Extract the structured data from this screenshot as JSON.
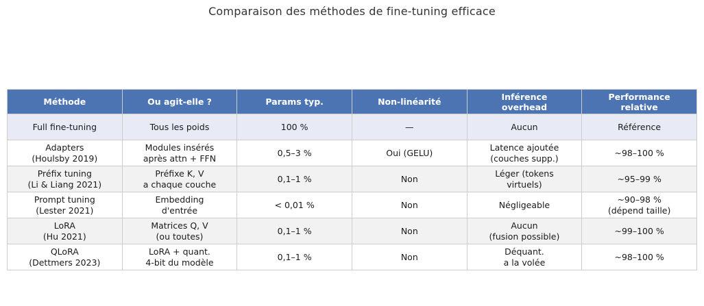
{
  "chart_data": {
    "type": "table",
    "title": "Comparaison des méthodes de fine-tuning efficace",
    "columns": [
      "Méthode",
      "Ou agit-elle ?",
      "Params typ.",
      "Non-linéarité",
      "Inférence\noverhead",
      "Performance\nrelative"
    ],
    "rows": [
      [
        "Full fine-tuning",
        "Tous les poids",
        "100 %",
        "—",
        "Aucun",
        "Référence"
      ],
      [
        "Adapters\n(Houlsby 2019)",
        "Modules insérés\naprès attn + FFN",
        "0,5–3 %",
        "Oui (GELU)",
        "Latence ajoutée\n(couches supp.)",
        "~98–100 %"
      ],
      [
        "Préfix tuning\n(Li & Liang 2021)",
        "Préfixe K, V\na chaque couche",
        "0,1–1 %",
        "Non",
        "Léger (tokens\nvirtuels)",
        "~95–99 %"
      ],
      [
        "Prompt tuning\n(Lester 2021)",
        "Embedding\nd'entrée",
        "< 0,01 %",
        "Non",
        "Négligeable",
        "~90–98 %\n(dépend taille)"
      ],
      [
        "LoRA\n(Hu 2021)",
        "Matrices Q, V\n(ou toutes)",
        "0,1–1 %",
        "Non",
        "Aucun\n(fusion possible)",
        "~99–100 %"
      ],
      [
        "QLoRA\n(Dettmers 2023)",
        "LoRA + quant.\n4-bit du modèle",
        "0,1–1 %",
        "Non",
        "Déquant.\na la volée",
        "~98–100 %"
      ]
    ],
    "layout": {
      "grid": "on",
      "header_style": "solid-fill",
      "first_row_emphasis": true
    }
  },
  "colors": {
    "header_bg": "#4d74b2",
    "header_text": "#ffffff",
    "row_highlight_bg": "#e8eaf6",
    "row_stripe_bg": "#f2f2f2",
    "border": "#cccccc"
  }
}
